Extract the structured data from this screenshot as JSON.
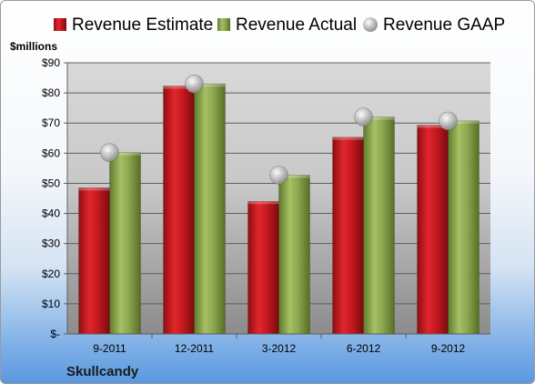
{
  "chart_data": {
    "type": "bar",
    "title": "",
    "unit_label": "$millions",
    "company": "Skullcandy",
    "categories": [
      "9-2011",
      "12-2011",
      "3-2012",
      "6-2012",
      "9-2012"
    ],
    "series": [
      {
        "name": "Revenue Estimate",
        "kind": "bar",
        "color": "#c0151b",
        "values": [
          48.5,
          82.3,
          44.0,
          65.3,
          69.3
        ]
      },
      {
        "name": "Revenue Actual",
        "kind": "bar",
        "color": "#8aa34b",
        "values": [
          60.2,
          83.0,
          52.7,
          72.0,
          70.7
        ]
      },
      {
        "name": "Revenue GAAP",
        "kind": "marker",
        "color": "#b8b8b8",
        "values": [
          60.2,
          83.0,
          52.7,
          72.0,
          70.7
        ]
      }
    ],
    "y_ticks": [
      "$-",
      "$10",
      "$20",
      "$30",
      "$40",
      "$50",
      "$60",
      "$70",
      "$80",
      "$90"
    ],
    "ylim": [
      0,
      90
    ],
    "grid": true,
    "legend_position": "top"
  }
}
